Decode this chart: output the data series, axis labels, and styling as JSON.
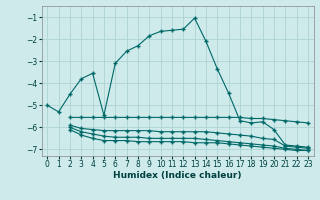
{
  "bg_color": "#ceeaea",
  "grid_color": "#aed4d4",
  "line_color": "#006868",
  "x_label": "Humidex (Indice chaleur)",
  "xlim": [
    -0.5,
    23.5
  ],
  "ylim": [
    -7.3,
    -0.5
  ],
  "yticks": [
    -7,
    -6,
    -5,
    -4,
    -3,
    -2,
    -1
  ],
  "xticks": [
    0,
    1,
    2,
    3,
    4,
    5,
    6,
    7,
    8,
    9,
    10,
    11,
    12,
    13,
    14,
    15,
    16,
    17,
    18,
    19,
    20,
    21,
    22,
    23
  ],
  "main_line": {
    "x": [
      0,
      1,
      2,
      3,
      4,
      5,
      6,
      7,
      8,
      9,
      10,
      11,
      12,
      13,
      14,
      15,
      16,
      17,
      18,
      19,
      20,
      21,
      22,
      23
    ],
    "y": [
      -5.0,
      -5.3,
      -4.5,
      -3.8,
      -3.55,
      -5.45,
      -3.1,
      -2.55,
      -2.3,
      -1.85,
      -1.65,
      -1.6,
      -1.55,
      -1.05,
      -2.1,
      -3.35,
      -4.45,
      -5.7,
      -5.8,
      -5.75,
      -6.1,
      -6.8,
      -6.85,
      -6.9
    ]
  },
  "flat_lines": [
    {
      "x": [
        2,
        3,
        4,
        5,
        6,
        7,
        8,
        9,
        10,
        11,
        12,
        13,
        14,
        15,
        16,
        17,
        18,
        19,
        20,
        21,
        22,
        23
      ],
      "y": [
        -5.55,
        -5.55,
        -5.55,
        -5.55,
        -5.55,
        -5.55,
        -5.55,
        -5.55,
        -5.55,
        -5.55,
        -5.55,
        -5.55,
        -5.55,
        -5.55,
        -5.55,
        -5.55,
        -5.6,
        -5.6,
        -5.65,
        -5.7,
        -5.75,
        -5.8
      ]
    },
    {
      "x": [
        2,
        3,
        4,
        5,
        6,
        7,
        8,
        9,
        10,
        11,
        12,
        13,
        14,
        15,
        16,
        17,
        18,
        19,
        20,
        21,
        22,
        23
      ],
      "y": [
        -5.9,
        -6.05,
        -6.1,
        -6.15,
        -6.15,
        -6.15,
        -6.15,
        -6.15,
        -6.2,
        -6.2,
        -6.2,
        -6.2,
        -6.2,
        -6.25,
        -6.3,
        -6.35,
        -6.4,
        -6.5,
        -6.55,
        -6.85,
        -6.9,
        -6.95
      ]
    },
    {
      "x": [
        2,
        3,
        4,
        5,
        6,
        7,
        8,
        9,
        10,
        11,
        12,
        13,
        14,
        15,
        16,
        17,
        18,
        19,
        20,
        21,
        22,
        23
      ],
      "y": [
        -6.0,
        -6.2,
        -6.3,
        -6.4,
        -6.45,
        -6.45,
        -6.45,
        -6.5,
        -6.5,
        -6.5,
        -6.5,
        -6.5,
        -6.55,
        -6.6,
        -6.65,
        -6.7,
        -6.75,
        -6.8,
        -6.85,
        -6.95,
        -7.0,
        -7.05
      ]
    },
    {
      "x": [
        2,
        3,
        4,
        5,
        6,
        7,
        8,
        9,
        10,
        11,
        12,
        13,
        14,
        15,
        16,
        17,
        18,
        19,
        20,
        21,
        22,
        23
      ],
      "y": [
        -6.1,
        -6.35,
        -6.5,
        -6.6,
        -6.6,
        -6.6,
        -6.65,
        -6.65,
        -6.65,
        -6.65,
        -6.65,
        -6.7,
        -6.7,
        -6.7,
        -6.75,
        -6.8,
        -6.85,
        -6.9,
        -6.95,
        -7.0,
        -7.05,
        -7.05
      ]
    }
  ]
}
